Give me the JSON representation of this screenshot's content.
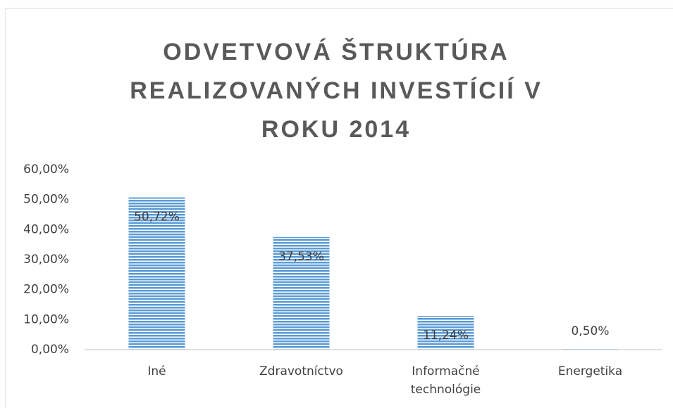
{
  "chart_data": {
    "type": "bar",
    "title": "ODVETVOVÁ ŠTRUKTÚRA REALIZOVANÝCH INVESTÍCIÍ V ROKU 2014",
    "categories": [
      "Iné",
      "Zdravotníctvo",
      "Informačné technológie",
      "Energetika"
    ],
    "values": [
      50.72,
      37.53,
      11.24,
      0.5
    ],
    "value_labels": [
      "50,72%",
      "37,53%",
      "11,24%",
      "0,50%"
    ],
    "color": "#5b9bd5",
    "ylim": [
      0,
      60
    ],
    "yticks": [
      {
        "value": 0,
        "label": "0,00%"
      },
      {
        "value": 10,
        "label": "10,00%"
      },
      {
        "value": 20,
        "label": "20,00%"
      },
      {
        "value": 30,
        "label": "30,00%"
      },
      {
        "value": 40,
        "label": "40,00%"
      },
      {
        "value": 50,
        "label": "50,00%"
      },
      {
        "value": 60,
        "label": "60,00%"
      }
    ],
    "grid": false
  }
}
